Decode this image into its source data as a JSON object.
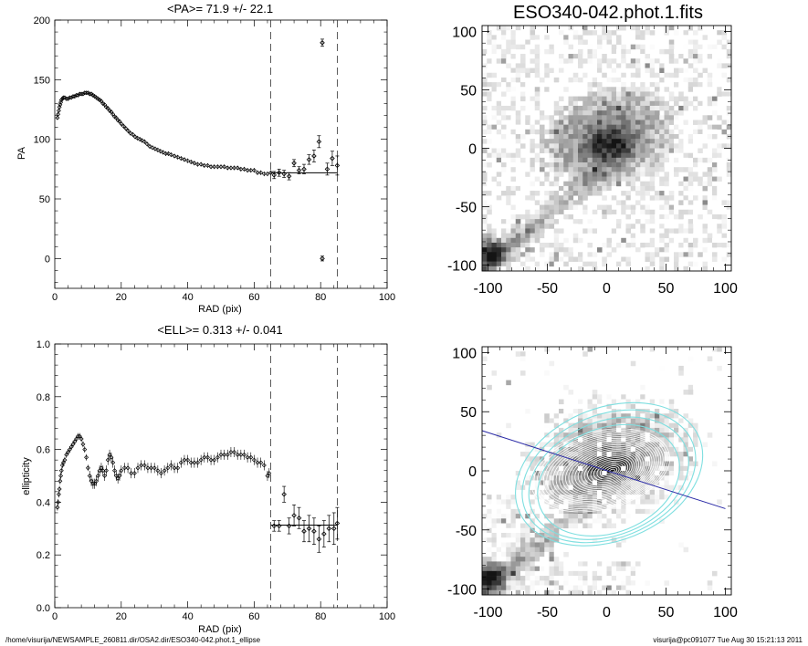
{
  "footer": {
    "path": "/home/visurija/NEWSAMPLE_260811.dir/OSA2.dir/ESO340-042.phot.1_ellipse",
    "user_date": "visurija@pc091077  Tue Aug 30 15:21:13 2011"
  },
  "chart_data": [
    {
      "type": "scatter",
      "title": "<PA>=  71.9 +/-  22.1",
      "xlabel": "RAD (pix)",
      "ylabel": "PA",
      "xlim": [
        0,
        100
      ],
      "ylim": [
        -25,
        200
      ],
      "xticks": [
        0,
        20,
        40,
        60,
        80,
        100
      ],
      "yticks": [
        0,
        50,
        100,
        150,
        200
      ],
      "minor_x": 5,
      "minor_y": 5,
      "vlines": [
        65,
        85
      ],
      "mean_line": {
        "x": [
          65,
          85
        ],
        "y": 71.9
      },
      "points": [
        [
          0.8,
          118
        ],
        [
          1.0,
          121
        ],
        [
          1.2,
          124
        ],
        [
          1.4,
          127
        ],
        [
          1.6,
          129
        ],
        [
          1.8,
          131
        ],
        [
          2.0,
          133
        ],
        [
          2.3,
          134
        ],
        [
          2.6,
          135
        ],
        [
          3.0,
          135
        ],
        [
          3.5,
          134
        ],
        [
          4.0,
          134
        ],
        [
          4.5,
          135
        ],
        [
          5.0,
          135
        ],
        [
          5.5,
          136
        ],
        [
          6.0,
          136
        ],
        [
          6.5,
          137
        ],
        [
          7.0,
          137
        ],
        [
          7.5,
          138
        ],
        [
          8.0,
          138
        ],
        [
          8.5,
          138
        ],
        [
          9.0,
          139
        ],
        [
          9.5,
          139
        ],
        [
          10.0,
          139
        ],
        [
          10.5,
          138
        ],
        [
          11.0,
          138
        ],
        [
          11.5,
          137
        ],
        [
          12.0,
          136
        ],
        [
          12.5,
          135
        ],
        [
          13.0,
          134
        ],
        [
          13.5,
          133
        ],
        [
          14.0,
          132
        ],
        [
          14.5,
          130
        ],
        [
          15.0,
          129
        ],
        [
          15.5,
          127
        ],
        [
          16.0,
          126
        ],
        [
          16.5,
          124
        ],
        [
          17.0,
          123
        ],
        [
          17.5,
          121
        ],
        [
          18.0,
          119
        ],
        [
          18.5,
          118
        ],
        [
          19.0,
          116
        ],
        [
          19.5,
          115
        ],
        [
          20.0,
          113
        ],
        [
          20.7,
          111
        ],
        [
          21.4,
          109
        ],
        [
          22.1,
          107
        ],
        [
          22.8,
          105
        ],
        [
          23.5,
          104
        ],
        [
          24.2,
          102
        ],
        [
          24.9,
          101
        ],
        [
          25.6,
          100
        ],
        [
          26.3,
          99
        ],
        [
          27.0,
          98
        ],
        [
          27.8,
          96
        ],
        [
          28.6,
          94
        ],
        [
          29.4,
          93
        ],
        [
          30.2,
          92
        ],
        [
          31.0,
          91
        ],
        [
          31.8,
          90
        ],
        [
          32.6,
          89
        ],
        [
          33.4,
          88
        ],
        [
          34.2,
          88
        ],
        [
          35.0,
          87
        ],
        [
          36.0,
          86
        ],
        [
          37.0,
          85
        ],
        [
          38.0,
          84
        ],
        [
          39.0,
          83
        ],
        [
          40.0,
          82
        ],
        [
          41.0,
          81
        ],
        [
          42.0,
          80
        ],
        [
          43.0,
          79
        ],
        [
          44.0,
          79
        ],
        [
          45.0,
          78
        ],
        [
          46.0,
          78
        ],
        [
          47.0,
          77
        ],
        [
          48.0,
          77
        ],
        [
          49.0,
          77
        ],
        [
          50.0,
          77
        ],
        [
          51.0,
          77
        ],
        [
          52.0,
          76
        ],
        [
          53.0,
          76
        ],
        [
          54.0,
          76
        ],
        [
          55.0,
          76
        ],
        [
          56.0,
          75
        ],
        [
          57.0,
          75
        ],
        [
          58.0,
          74
        ],
        [
          59.0,
          74
        ],
        [
          60.0,
          74
        ],
        [
          61.0,
          72
        ],
        [
          62.0,
          72
        ],
        [
          63.0,
          71
        ],
        [
          64.0,
          71
        ],
        [
          65.0,
          72
        ]
      ],
      "points_err": [
        [
          66,
          70,
          3
        ],
        [
          67.5,
          72,
          3
        ],
        [
          69,
          71,
          3
        ],
        [
          70.5,
          69,
          3
        ],
        [
          72,
          80,
          3
        ],
        [
          73.5,
          74,
          3
        ],
        [
          75,
          75,
          4
        ],
        [
          76.5,
          83,
          4
        ],
        [
          78,
          86,
          5
        ],
        [
          79.5,
          98,
          5
        ],
        [
          80.5,
          181,
          3
        ],
        [
          80.5,
          0,
          2
        ],
        [
          82,
          75,
          5
        ],
        [
          83.5,
          84,
          6
        ],
        [
          85,
          78,
          8
        ]
      ]
    },
    {
      "type": "scatter",
      "title": "<ELL>= 0.313 +/-  0.041",
      "xlabel": "RAD (pix)",
      "ylabel": "ellipticity",
      "xlim": [
        0,
        100
      ],
      "ylim": [
        0.0,
        1.0
      ],
      "xticks": [
        0,
        20,
        40,
        60,
        80,
        100
      ],
      "yticks": [
        0.0,
        0.2,
        0.4,
        0.6,
        0.8,
        1.0
      ],
      "minor_x": 5,
      "minor_y": 5,
      "vlines": [
        65,
        85
      ],
      "mean_line": {
        "x": [
          65,
          85
        ],
        "y": 0.313
      },
      "points": [
        [
          0.8,
          0.38
        ],
        [
          1.0,
          0.4
        ],
        [
          1.2,
          0.43
        ],
        [
          1.4,
          0.45
        ],
        [
          1.6,
          0.48
        ],
        [
          1.8,
          0.5
        ],
        [
          2.0,
          0.52
        ],
        [
          2.3,
          0.54
        ],
        [
          2.6,
          0.55
        ],
        [
          3.0,
          0.56
        ],
        [
          3.5,
          0.58
        ],
        [
          4.0,
          0.59
        ],
        [
          4.5,
          0.6
        ],
        [
          5.0,
          0.61
        ],
        [
          5.5,
          0.62
        ],
        [
          6.0,
          0.63
        ],
        [
          6.5,
          0.64
        ],
        [
          7.0,
          0.65
        ],
        [
          7.5,
          0.65
        ],
        [
          8.0,
          0.64
        ],
        [
          8.5,
          0.62
        ],
        [
          9.0,
          0.6
        ],
        [
          9.5,
          0.57
        ],
        [
          10.0,
          0.53
        ],
        [
          10.5,
          0.5
        ],
        [
          11.0,
          0.48
        ],
        [
          11.5,
          0.47
        ],
        [
          12.0,
          0.47
        ],
        [
          12.5,
          0.48
        ],
        [
          13.0,
          0.5
        ],
        [
          13.5,
          0.52
        ],
        [
          14.0,
          0.53
        ],
        [
          14.5,
          0.52
        ],
        [
          15.0,
          0.5
        ],
        [
          15.5,
          0.52
        ],
        [
          16.0,
          0.56
        ],
        [
          16.5,
          0.58
        ],
        [
          17.0,
          0.57
        ],
        [
          17.5,
          0.55
        ],
        [
          18.0,
          0.52
        ],
        [
          18.5,
          0.5
        ],
        [
          19.0,
          0.49
        ],
        [
          19.5,
          0.5
        ],
        [
          20.0,
          0.52
        ],
        [
          21.0,
          0.53
        ],
        [
          22.0,
          0.53
        ],
        [
          23.0,
          0.51
        ],
        [
          24.0,
          0.51
        ],
        [
          25.0,
          0.53
        ],
        [
          26.0,
          0.54
        ],
        [
          27.0,
          0.54
        ],
        [
          28.0,
          0.53
        ],
        [
          29.0,
          0.53
        ],
        [
          30.0,
          0.53
        ],
        [
          31.0,
          0.52
        ],
        [
          32.0,
          0.51
        ],
        [
          33.0,
          0.52
        ],
        [
          34.0,
          0.53
        ],
        [
          35.0,
          0.54
        ],
        [
          36.0,
          0.53
        ],
        [
          37.0,
          0.53
        ],
        [
          38.0,
          0.55
        ],
        [
          39.0,
          0.56
        ],
        [
          40.0,
          0.56
        ],
        [
          41.0,
          0.55
        ],
        [
          42.0,
          0.55
        ],
        [
          43.0,
          0.55
        ],
        [
          44.0,
          0.56
        ],
        [
          45.0,
          0.57
        ],
        [
          46.0,
          0.57
        ],
        [
          47.0,
          0.56
        ],
        [
          48.0,
          0.56
        ],
        [
          49.0,
          0.57
        ],
        [
          50.0,
          0.58
        ],
        [
          51.0,
          0.58
        ],
        [
          52.0,
          0.58
        ],
        [
          53.0,
          0.59
        ],
        [
          54.0,
          0.59
        ],
        [
          55.0,
          0.58
        ],
        [
          56.0,
          0.58
        ],
        [
          57.0,
          0.58
        ],
        [
          58.0,
          0.57
        ],
        [
          59.0,
          0.57
        ],
        [
          60.0,
          0.56
        ],
        [
          61.0,
          0.55
        ],
        [
          62.0,
          0.55
        ],
        [
          63.0,
          0.54
        ],
        [
          64.0,
          0.5
        ],
        [
          64.5,
          0.51
        ]
      ],
      "points_err": [
        [
          66,
          0.31,
          0.02
        ],
        [
          67.5,
          0.31,
          0.02
        ],
        [
          69,
          0.43,
          0.03
        ],
        [
          70.5,
          0.31,
          0.03
        ],
        [
          72,
          0.35,
          0.04
        ],
        [
          73.5,
          0.34,
          0.04
        ],
        [
          75,
          0.29,
          0.04
        ],
        [
          76.5,
          0.3,
          0.05
        ],
        [
          78,
          0.29,
          0.05
        ],
        [
          79.5,
          0.26,
          0.05
        ],
        [
          81,
          0.28,
          0.05
        ],
        [
          82.5,
          0.3,
          0.05
        ],
        [
          84,
          0.3,
          0.06
        ],
        [
          85,
          0.32,
          0.06
        ]
      ]
    },
    {
      "type": "heatmap",
      "title": "ESO340-042.phot.1.fits",
      "xlim": [
        -105,
        105
      ],
      "ylim": [
        -105,
        105
      ],
      "xticks": [
        -100,
        -50,
        0,
        50,
        100
      ],
      "yticks": [
        -100,
        -50,
        0,
        50,
        100
      ]
    },
    {
      "type": "heatmap",
      "title": "",
      "xlim": [
        -105,
        105
      ],
      "ylim": [
        -105,
        105
      ],
      "xticks": [
        -100,
        -50,
        0,
        50,
        100
      ],
      "yticks": [
        -100,
        -50,
        0,
        50,
        100
      ],
      "contour_color": "#7fdfe0",
      "axis_line": {
        "color": "#2a2aa6",
        "angle_deg": -18
      }
    }
  ]
}
